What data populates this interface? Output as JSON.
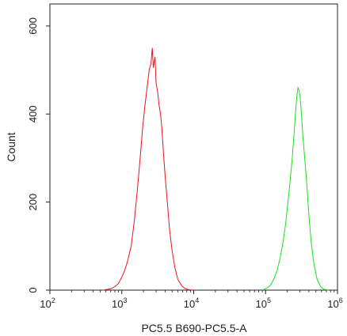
{
  "chart_data": {
    "type": "line",
    "title": "",
    "xlabel": "PC5.5 B690-PC5.5-A",
    "ylabel": "Count",
    "x_scale": "log10",
    "xlim": [
      100,
      1000000
    ],
    "ylim": [
      0,
      650
    ],
    "x_ticks": [
      {
        "value": 100,
        "base": "10",
        "exp": "2"
      },
      {
        "value": 1000,
        "base": "10",
        "exp": "3"
      },
      {
        "value": 10000,
        "base": "10",
        "exp": "4"
      },
      {
        "value": 100000,
        "base": "10",
        "exp": "5"
      },
      {
        "value": 1000000,
        "base": "10",
        "exp": "6"
      }
    ],
    "y_ticks": [
      0,
      200,
      400,
      600
    ],
    "grid": false,
    "series": [
      {
        "color": "#e8141c",
        "points": [
          [
            550,
            0
          ],
          [
            700,
            3
          ],
          [
            800,
            8
          ],
          [
            900,
            15
          ],
          [
            1000,
            30
          ],
          [
            1100,
            45
          ],
          [
            1200,
            65
          ],
          [
            1350,
            100
          ],
          [
            1500,
            160
          ],
          [
            1650,
            230
          ],
          [
            1800,
            300
          ],
          [
            1950,
            370
          ],
          [
            2100,
            420
          ],
          [
            2250,
            460
          ],
          [
            2400,
            500
          ],
          [
            2550,
            515
          ],
          [
            2650,
            550
          ],
          [
            2750,
            505
          ],
          [
            2900,
            530
          ],
          [
            3000,
            470
          ],
          [
            3150,
            450
          ],
          [
            3300,
            420
          ],
          [
            3450,
            400
          ],
          [
            3600,
            370
          ],
          [
            3800,
            310
          ],
          [
            4000,
            260
          ],
          [
            4300,
            200
          ],
          [
            4600,
            140
          ],
          [
            5000,
            90
          ],
          [
            5500,
            50
          ],
          [
            6000,
            25
          ],
          [
            6800,
            10
          ],
          [
            7500,
            4
          ],
          [
            8500,
            1
          ],
          [
            10000,
            0
          ]
        ]
      },
      {
        "color": "#1ee01e",
        "points": [
          [
            90000,
            0
          ],
          [
            105000,
            5
          ],
          [
            115000,
            10
          ],
          [
            130000,
            25
          ],
          [
            145000,
            45
          ],
          [
            160000,
            75
          ],
          [
            175000,
            110
          ],
          [
            190000,
            150
          ],
          [
            205000,
            200
          ],
          [
            220000,
            250
          ],
          [
            235000,
            300
          ],
          [
            250000,
            360
          ],
          [
            262000,
            410
          ],
          [
            272000,
            440
          ],
          [
            282000,
            460
          ],
          [
            292000,
            455
          ],
          [
            302000,
            440
          ],
          [
            315000,
            400
          ],
          [
            330000,
            350
          ],
          [
            350000,
            300
          ],
          [
            375000,
            240
          ],
          [
            400000,
            170
          ],
          [
            430000,
            110
          ],
          [
            470000,
            60
          ],
          [
            520000,
            25
          ],
          [
            580000,
            8
          ],
          [
            650000,
            2
          ],
          [
            750000,
            0
          ]
        ]
      }
    ]
  }
}
